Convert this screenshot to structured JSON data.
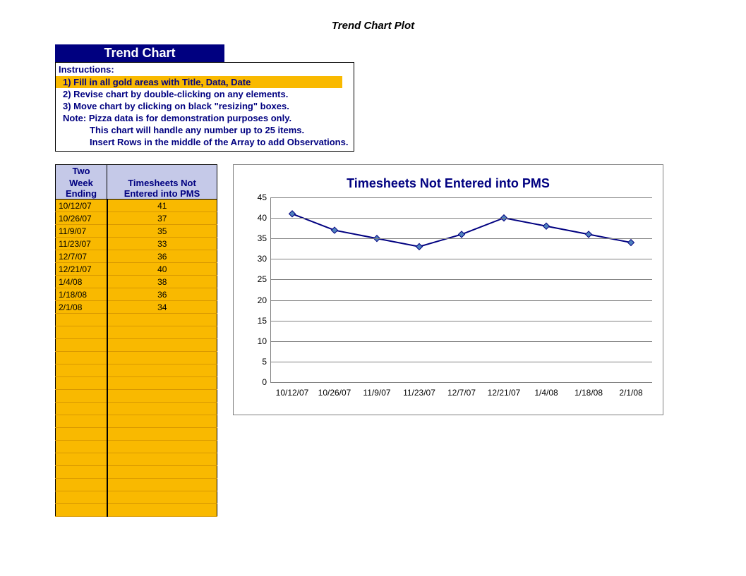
{
  "page_title": "Trend Chart Plot",
  "header_bar": "Trend Chart",
  "instructions": {
    "header": "Instructions:",
    "line1": "1) Fill in all gold areas with Title, Data, Date",
    "line2": "2) Revise chart by double-clicking on any elements.",
    "line3": "3) Move chart by clicking on black \"resizing\" boxes.",
    "note": "Note:  Pizza data is for demonstration purposes only.",
    "sub1": "This chart will handle any number up to 25 items.",
    "sub2": "Insert Rows in the middle of the Array to add Observations."
  },
  "table": {
    "col1_header_top": "Two",
    "col1_header": "Week Ending",
    "col2_header": "Timesheets Not Entered into PMS",
    "total_visible_rows": 25,
    "dates": [
      "10/12/07",
      "10/26/07",
      "11/9/07",
      "11/23/07",
      "12/7/07",
      "12/21/07",
      "1/4/08",
      "1/18/08",
      "2/1/08"
    ],
    "values": [
      41,
      37,
      35,
      33,
      36,
      40,
      38,
      36,
      34
    ],
    "header_bg": "#c5c9e8",
    "header_fg": "#000080",
    "cell_bg": "#f9b900",
    "cell_fg": "#000000"
  },
  "chart": {
    "type": "line",
    "title": "Timesheets Not Entered into PMS",
    "title_color": "#000080",
    "title_fontsize": 18,
    "x_labels": [
      "10/12/07",
      "10/26/07",
      "11/9/07",
      "11/23/07",
      "12/7/07",
      "12/21/07",
      "1/4/08",
      "1/18/08",
      "2/1/08"
    ],
    "y_values": [
      41,
      37,
      35,
      33,
      36,
      40,
      38,
      36,
      34
    ],
    "ylim": [
      0,
      45
    ],
    "ytick_step": 5,
    "yticks": [
      0,
      5,
      10,
      15,
      20,
      25,
      30,
      35,
      40,
      45
    ],
    "line_color": "#000080",
    "line_width": 2,
    "marker_shape": "diamond",
    "marker_color": "#4f81bd",
    "marker_size": 9,
    "grid_color": "#808080",
    "background_color": "#ffffff",
    "label_color": "#000000",
    "label_fontsize": 12,
    "border_color": "#7f7f7f"
  },
  "colors": {
    "navy": "#000080",
    "gold": "#f9b900",
    "white": "#ffffff"
  }
}
